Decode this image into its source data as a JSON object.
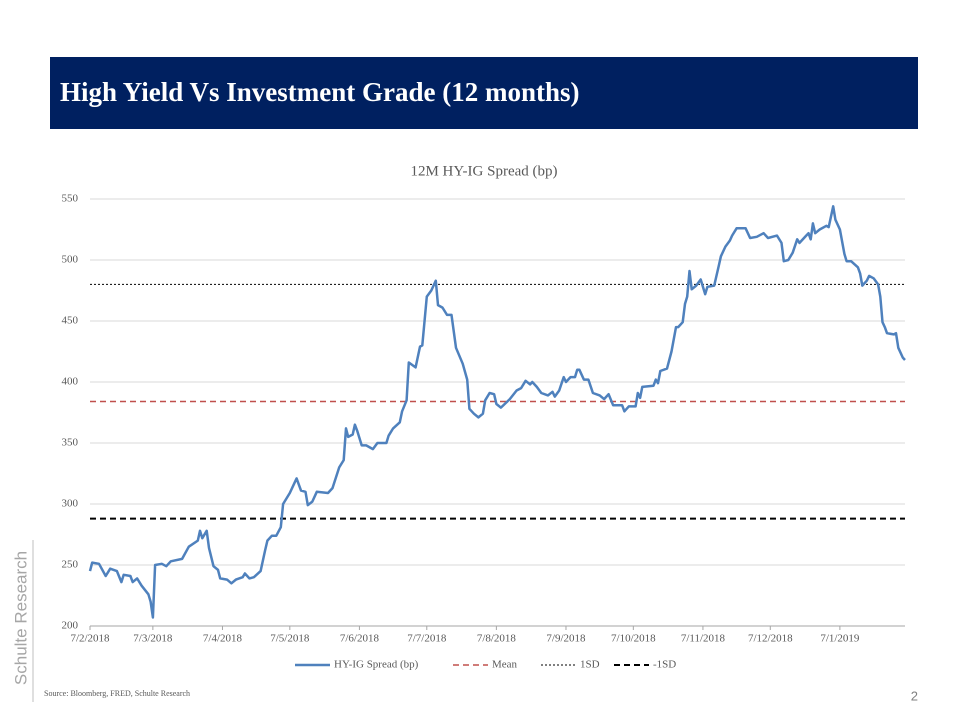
{
  "chart_data": {
    "type": "line",
    "slide_title": "High Yield Vs Investment Grade (12 months)",
    "title": "12M HY-IG Spread (bp)",
    "watermark": "Schulte Research",
    "source": "Source: Bloomberg, FRED, Schulte Research",
    "page_number": 2,
    "ylim": [
      200,
      550
    ],
    "yticks": [
      200,
      250,
      300,
      350,
      400,
      450,
      500,
      550
    ],
    "xlim": [
      "2018-02-07",
      "2019-02-05"
    ],
    "xticks": [
      {
        "value": "2018-02-07",
        "label": "7/2/2018"
      },
      {
        "value": "2018-03-07",
        "label": "7/3/2018"
      },
      {
        "value": "2018-04-07",
        "label": "7/4/2018"
      },
      {
        "value": "2018-05-07",
        "label": "7/5/2018"
      },
      {
        "value": "2018-06-07",
        "label": "7/6/2018"
      },
      {
        "value": "2018-07-07",
        "label": "7/7/2018"
      },
      {
        "value": "2018-08-07",
        "label": "7/8/2018"
      },
      {
        "value": "2018-09-07",
        "label": "7/9/2018"
      },
      {
        "value": "2018-10-07",
        "label": "7/10/2018"
      },
      {
        "value": "2018-11-07",
        "label": "7/11/2018"
      },
      {
        "value": "2018-12-07",
        "label": "7/12/2018"
      },
      {
        "value": "2019-01-07",
        "label": "7/1/2019"
      }
    ],
    "grid": true,
    "series": [
      {
        "name": "HY-IG Spread (bp)",
        "color": "#4f81bd",
        "x": [
          "2018-02-07",
          "2018-02-08",
          "2018-02-11",
          "2018-02-14",
          "2018-02-16",
          "2018-02-19",
          "2018-02-21",
          "2018-02-22",
          "2018-02-25",
          "2018-02-26",
          "2018-02-28",
          "2018-03-02",
          "2018-03-05",
          "2018-03-06",
          "2018-03-07",
          "2018-03-08",
          "2018-03-11",
          "2018-03-13",
          "2018-03-15",
          "2018-03-20",
          "2018-03-23",
          "2018-03-27",
          "2018-03-28",
          "2018-03-29",
          "2018-03-31",
          "2018-04-01",
          "2018-04-03",
          "2018-04-05",
          "2018-04-06",
          "2018-04-09",
          "2018-04-11",
          "2018-04-13",
          "2018-04-16",
          "2018-04-17",
          "2018-04-19",
          "2018-04-21",
          "2018-04-24",
          "2018-04-26",
          "2018-04-27",
          "2018-04-29",
          "2018-05-01",
          "2018-05-03",
          "2018-05-04",
          "2018-05-07",
          "2018-05-09",
          "2018-05-10",
          "2018-05-12",
          "2018-05-14",
          "2018-05-15",
          "2018-05-17",
          "2018-05-19",
          "2018-05-24",
          "2018-05-26",
          "2018-05-29",
          "2018-05-31",
          "2018-06-01",
          "2018-06-02",
          "2018-06-04",
          "2018-06-05",
          "2018-06-06",
          "2018-06-08",
          "2018-06-10",
          "2018-06-13",
          "2018-06-15",
          "2018-06-19",
          "2018-06-20",
          "2018-06-22",
          "2018-06-25",
          "2018-06-26",
          "2018-06-28",
          "2018-06-29",
          "2018-07-02",
          "2018-07-04",
          "2018-07-05",
          "2018-07-07",
          "2018-07-09",
          "2018-07-11",
          "2018-07-12",
          "2018-07-14",
          "2018-07-16",
          "2018-07-18",
          "2018-07-20",
          "2018-07-23",
          "2018-07-25",
          "2018-07-26",
          "2018-07-28",
          "2018-07-30",
          "2018-08-01",
          "2018-08-02",
          "2018-08-04",
          "2018-08-06",
          "2018-08-07",
          "2018-08-09",
          "2018-08-13",
          "2018-08-16",
          "2018-08-18",
          "2018-08-20",
          "2018-08-22",
          "2018-08-23",
          "2018-08-25",
          "2018-08-27",
          "2018-08-30",
          "2018-09-01",
          "2018-09-02",
          "2018-09-04",
          "2018-09-06",
          "2018-09-07",
          "2018-09-09",
          "2018-09-11",
          "2018-09-12",
          "2018-09-13",
          "2018-09-15",
          "2018-09-17",
          "2018-09-19",
          "2018-09-22",
          "2018-09-24",
          "2018-09-26",
          "2018-09-28",
          "2018-10-02",
          "2018-10-03",
          "2018-10-05",
          "2018-10-08",
          "2018-10-09",
          "2018-10-10",
          "2018-10-11",
          "2018-10-16",
          "2018-10-17",
          "2018-10-18",
          "2018-10-19",
          "2018-10-22",
          "2018-10-24",
          "2018-10-26",
          "2018-10-27",
          "2018-10-29",
          "2018-10-30",
          "2018-10-31",
          "2018-11-01",
          "2018-11-02",
          "2018-11-04",
          "2018-11-06",
          "2018-11-08",
          "2018-11-09",
          "2018-11-12",
          "2018-11-14",
          "2018-11-15",
          "2018-11-17",
          "2018-11-19",
          "2018-11-20",
          "2018-11-22",
          "2018-11-26",
          "2018-11-28",
          "2018-12-01",
          "2018-12-04",
          "2018-12-06",
          "2018-12-10",
          "2018-12-12",
          "2018-12-13",
          "2018-12-15",
          "2018-12-17",
          "2018-12-19",
          "2018-12-20",
          "2018-12-23",
          "2018-12-24",
          "2018-12-25",
          "2018-12-26",
          "2018-12-27",
          "2018-12-29",
          "2019-01-01",
          "2019-01-02",
          "2019-01-04",
          "2019-01-05",
          "2019-01-07",
          "2019-01-09",
          "2019-01-10",
          "2019-01-12",
          "2019-01-15",
          "2019-01-16",
          "2019-01-17",
          "2019-01-19",
          "2019-01-20",
          "2019-01-22",
          "2019-01-24",
          "2019-01-25",
          "2019-01-26",
          "2019-01-27",
          "2019-01-28",
          "2019-01-31",
          "2019-02-01",
          "2019-02-02",
          "2019-02-04",
          "2019-02-05"
        ],
        "values": [
          245,
          252,
          251,
          241,
          247,
          245,
          236,
          242,
          241,
          236,
          239,
          233,
          226,
          220,
          207,
          250,
          251,
          249,
          253,
          255,
          265,
          270,
          278,
          272,
          278,
          264,
          249,
          246,
          239,
          238,
          235,
          238,
          240,
          243,
          239,
          240,
          245,
          262,
          270,
          274,
          274,
          281,
          300,
          309,
          317,
          321,
          311,
          310,
          299,
          302,
          310,
          309,
          313,
          330,
          336,
          362,
          355,
          357,
          365,
          360,
          348,
          348,
          345,
          350,
          350,
          356,
          362,
          367,
          376,
          385,
          416,
          412,
          429,
          430,
          470,
          475,
          483,
          463,
          461,
          455,
          455,
          428,
          415,
          402,
          378,
          374,
          371,
          374,
          385,
          391,
          390,
          382,
          379,
          386,
          393,
          395,
          401,
          398,
          400,
          396,
          391,
          389,
          392,
          388,
          393,
          404,
          400,
          404,
          404,
          410,
          410,
          402,
          402,
          391,
          389,
          386,
          390,
          381,
          381,
          376,
          380,
          380,
          391,
          387,
          396,
          397,
          402,
          399,
          409,
          411,
          425,
          445,
          445,
          449,
          464,
          470,
          491,
          476,
          479,
          484,
          472,
          478,
          479,
          495,
          503,
          511,
          516,
          520,
          526,
          526,
          518,
          519,
          522,
          518,
          520,
          514,
          499,
          500,
          506,
          517,
          514,
          520,
          522,
          517,
          530,
          522,
          525,
          528,
          527,
          544,
          533,
          525,
          505,
          499,
          499,
          494,
          489,
          479,
          483,
          487,
          485,
          480,
          470,
          449,
          445,
          440,
          439,
          440,
          428,
          420,
          418
        ]
      }
    ],
    "hlines": [
      {
        "name": "Mean",
        "color": "#c0504d",
        "value": 384,
        "style": "dashed"
      },
      {
        "name": "1SD",
        "color": "#000000",
        "value": 480,
        "style": "dotted"
      },
      {
        "name": "-1SD",
        "color": "#000000",
        "value": 288,
        "style": "dashed-bold"
      }
    ]
  }
}
